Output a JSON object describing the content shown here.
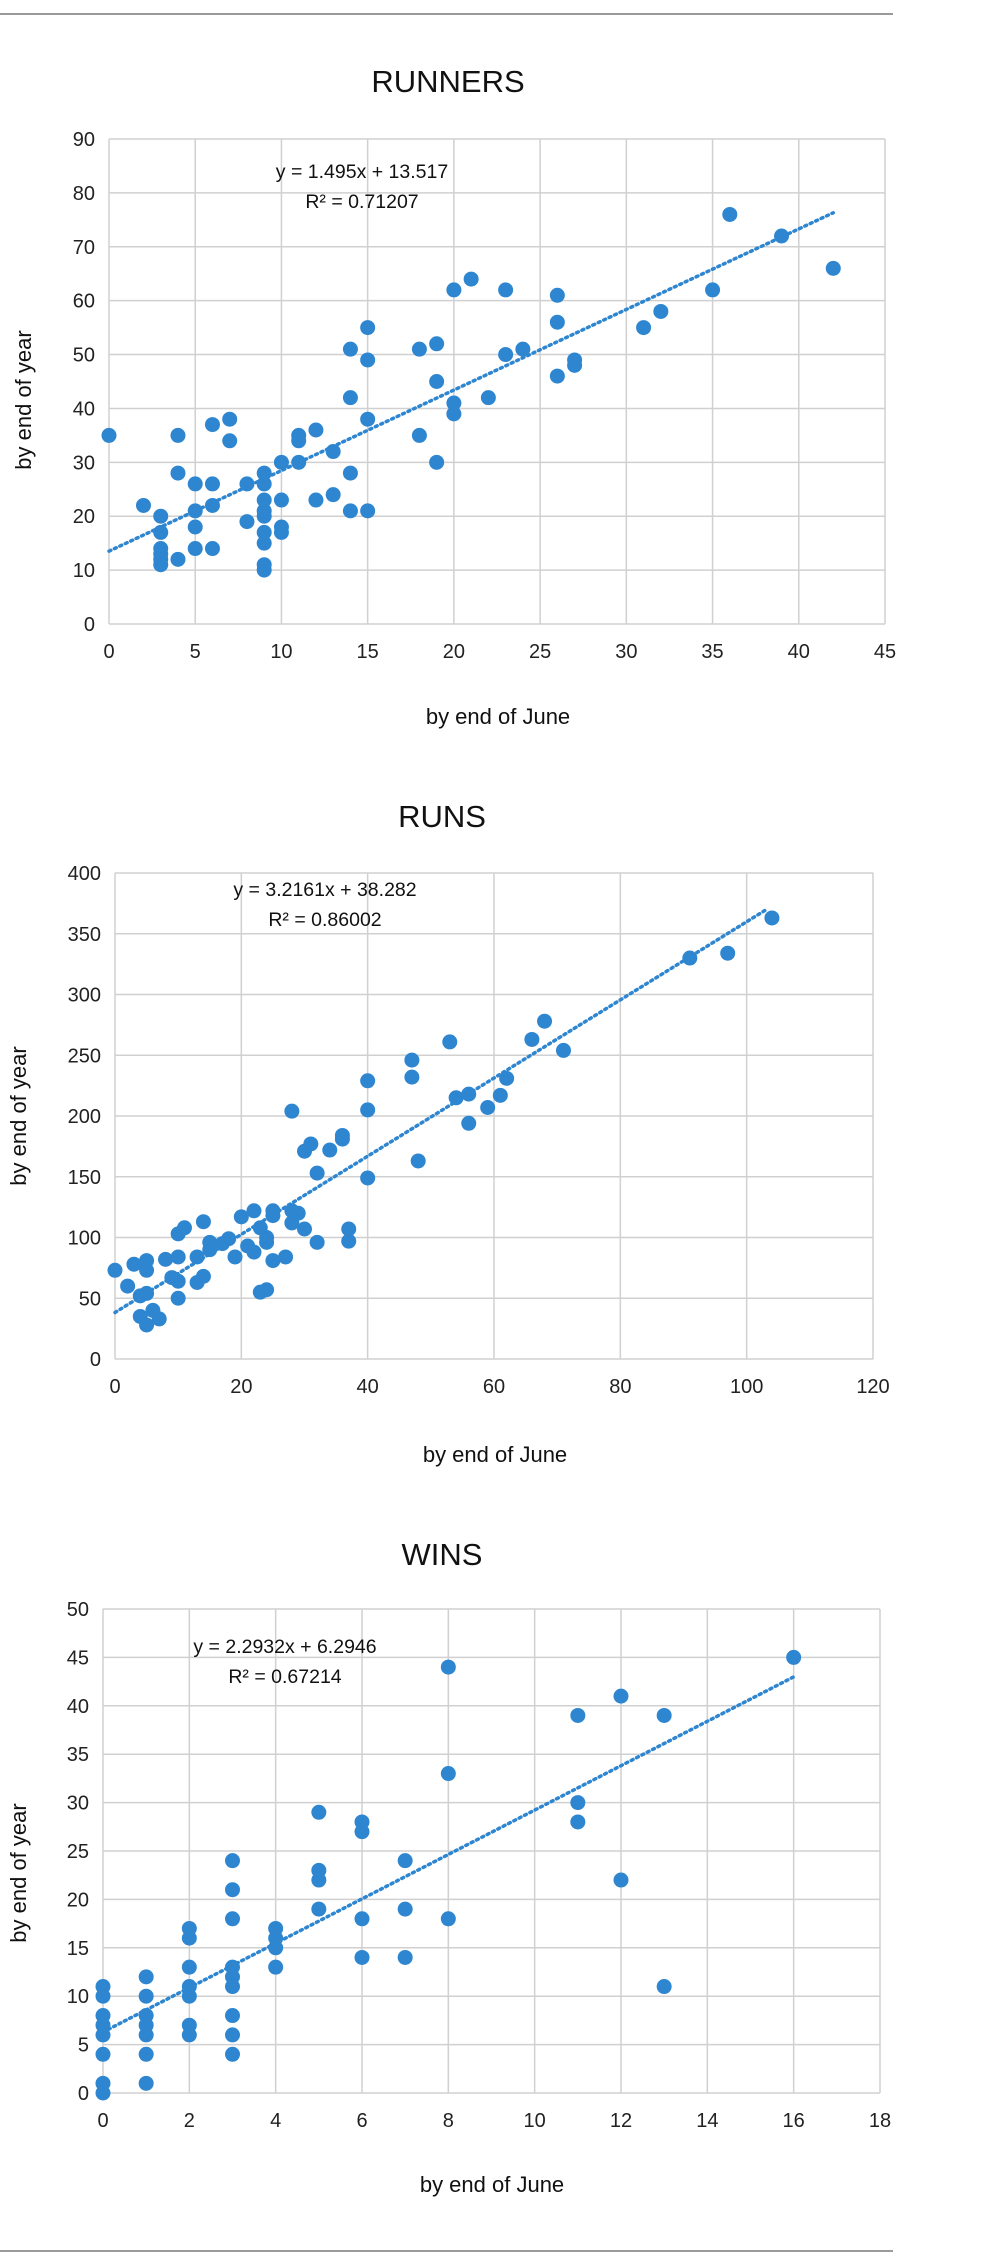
{
  "chart_data": [
    {
      "type": "scatter",
      "title": "RUNNERS",
      "xlabel": "by end of June",
      "ylabel": "by end of year",
      "xlim": [
        0,
        45
      ],
      "ylim": [
        0,
        90
      ],
      "xticks": [
        0,
        5,
        10,
        15,
        20,
        25,
        30,
        35,
        40,
        45
      ],
      "yticks": [
        0,
        10,
        20,
        30,
        40,
        50,
        60,
        70,
        80,
        90
      ],
      "grid": true,
      "trendline": {
        "slope": 1.495,
        "intercept": 13.517,
        "x_range": [
          0,
          42
        ],
        "equation": "y = 1.495x + 13.517",
        "r2": "R² = 0.71207"
      },
      "points": [
        [
          0,
          35
        ],
        [
          2,
          22
        ],
        [
          3,
          11
        ],
        [
          3,
          12
        ],
        [
          3,
          13
        ],
        [
          3,
          14
        ],
        [
          3,
          17
        ],
        [
          3,
          20
        ],
        [
          4,
          12
        ],
        [
          4,
          28
        ],
        [
          4,
          35
        ],
        [
          5,
          14
        ],
        [
          5,
          18
        ],
        [
          5,
          21
        ],
        [
          5,
          26
        ],
        [
          6,
          14
        ],
        [
          6,
          22
        ],
        [
          6,
          26
        ],
        [
          6,
          37
        ],
        [
          7,
          34
        ],
        [
          7,
          38
        ],
        [
          8,
          19
        ],
        [
          8,
          26
        ],
        [
          9,
          10
        ],
        [
          9,
          11
        ],
        [
          9,
          15
        ],
        [
          9,
          17
        ],
        [
          9,
          20
        ],
        [
          9,
          21
        ],
        [
          9,
          23
        ],
        [
          9,
          26
        ],
        [
          9,
          28
        ],
        [
          10,
          17
        ],
        [
          10,
          18
        ],
        [
          10,
          23
        ],
        [
          10,
          30
        ],
        [
          11,
          30
        ],
        [
          11,
          34
        ],
        [
          11,
          35
        ],
        [
          12,
          23
        ],
        [
          12,
          36
        ],
        [
          13,
          24
        ],
        [
          13,
          32
        ],
        [
          14,
          21
        ],
        [
          14,
          28
        ],
        [
          14,
          42
        ],
        [
          14,
          51
        ],
        [
          15,
          21
        ],
        [
          15,
          38
        ],
        [
          15,
          49
        ],
        [
          15,
          55
        ],
        [
          18,
          35
        ],
        [
          18,
          51
        ],
        [
          19,
          30
        ],
        [
          19,
          45
        ],
        [
          19,
          52
        ],
        [
          20,
          39
        ],
        [
          20,
          41
        ],
        [
          20,
          62
        ],
        [
          21,
          64
        ],
        [
          22,
          42
        ],
        [
          23,
          50
        ],
        [
          23,
          62
        ],
        [
          24,
          51
        ],
        [
          26,
          46
        ],
        [
          26,
          56
        ],
        [
          26,
          61
        ],
        [
          27,
          48
        ],
        [
          27,
          49
        ],
        [
          31,
          55
        ],
        [
          32,
          58
        ],
        [
          35,
          62
        ],
        [
          36,
          76
        ],
        [
          39,
          72
        ],
        [
          42,
          66
        ]
      ]
    },
    {
      "type": "scatter",
      "title": "RUNS",
      "xlabel": "by end of June",
      "ylabel": "by end of year",
      "xlim": [
        0,
        120
      ],
      "ylim": [
        0,
        400
      ],
      "xticks": [
        0,
        20,
        40,
        60,
        80,
        100,
        120
      ],
      "yticks": [
        0,
        50,
        100,
        150,
        200,
        250,
        300,
        350,
        400
      ],
      "grid": true,
      "trendline": {
        "slope": 3.2161,
        "intercept": 38.282,
        "x_range": [
          0,
          103
        ],
        "equation": "y = 3.2161x + 38.282",
        "r2": "R² = 0.86002"
      },
      "points": [
        [
          0,
          73
        ],
        [
          2,
          60
        ],
        [
          3,
          78
        ],
        [
          4,
          35
        ],
        [
          4,
          52
        ],
        [
          5,
          28
        ],
        [
          5,
          54
        ],
        [
          5,
          73
        ],
        [
          5,
          81
        ],
        [
          6,
          40
        ],
        [
          7,
          33
        ],
        [
          8,
          82
        ],
        [
          9,
          67
        ],
        [
          10,
          50
        ],
        [
          10,
          64
        ],
        [
          10,
          84
        ],
        [
          10,
          103
        ],
        [
          11,
          108
        ],
        [
          13,
          63
        ],
        [
          13,
          84
        ],
        [
          14,
          68
        ],
        [
          14,
          113
        ],
        [
          15,
          90
        ],
        [
          15,
          96
        ],
        [
          17,
          95
        ],
        [
          18,
          99
        ],
        [
          19,
          84
        ],
        [
          20,
          117
        ],
        [
          21,
          93
        ],
        [
          22,
          88
        ],
        [
          22,
          122
        ],
        [
          23,
          55
        ],
        [
          23,
          108
        ],
        [
          24,
          57
        ],
        [
          24,
          96
        ],
        [
          24,
          100
        ],
        [
          25,
          81
        ],
        [
          25,
          118
        ],
        [
          25,
          122
        ],
        [
          27,
          84
        ],
        [
          28,
          112
        ],
        [
          28,
          122
        ],
        [
          28,
          204
        ],
        [
          29,
          120
        ],
        [
          30,
          107
        ],
        [
          30,
          171
        ],
        [
          31,
          177
        ],
        [
          32,
          96
        ],
        [
          32,
          153
        ],
        [
          34,
          172
        ],
        [
          36,
          181
        ],
        [
          36,
          184
        ],
        [
          37,
          97
        ],
        [
          37,
          107
        ],
        [
          40,
          149
        ],
        [
          40,
          205
        ],
        [
          40,
          229
        ],
        [
          47,
          232
        ],
        [
          47,
          246
        ],
        [
          48,
          163
        ],
        [
          53,
          261
        ],
        [
          54,
          215
        ],
        [
          56,
          194
        ],
        [
          56,
          218
        ],
        [
          59,
          207
        ],
        [
          61,
          217
        ],
        [
          62,
          231
        ],
        [
          66,
          263
        ],
        [
          68,
          278
        ],
        [
          71,
          254
        ],
        [
          91,
          330
        ],
        [
          97,
          334
        ],
        [
          104,
          363
        ]
      ]
    },
    {
      "type": "scatter",
      "title": "WINS",
      "xlabel": "by end of June",
      "ylabel": "by end of year",
      "xlim": [
        0,
        18
      ],
      "ylim": [
        0,
        50
      ],
      "xticks": [
        0,
        2,
        4,
        6,
        8,
        10,
        12,
        14,
        16,
        18
      ],
      "yticks": [
        0,
        5,
        10,
        15,
        20,
        25,
        30,
        35,
        40,
        45,
        50
      ],
      "grid": true,
      "trendline": {
        "slope": 2.2932,
        "intercept": 6.2946,
        "x_range": [
          0,
          16
        ],
        "equation": "y = 2.2932x + 6.2946",
        "r2": "R² = 0.67214"
      },
      "points": [
        [
          0,
          0
        ],
        [
          0,
          1
        ],
        [
          0,
          4
        ],
        [
          0,
          6
        ],
        [
          0,
          7
        ],
        [
          0,
          8
        ],
        [
          0,
          10
        ],
        [
          0,
          11
        ],
        [
          1,
          1
        ],
        [
          1,
          4
        ],
        [
          1,
          6
        ],
        [
          1,
          7
        ],
        [
          1,
          8
        ],
        [
          1,
          10
        ],
        [
          1,
          12
        ],
        [
          2,
          6
        ],
        [
          2,
          7
        ],
        [
          2,
          10
        ],
        [
          2,
          11
        ],
        [
          2,
          13
        ],
        [
          2,
          16
        ],
        [
          2,
          17
        ],
        [
          3,
          4
        ],
        [
          3,
          6
        ],
        [
          3,
          8
        ],
        [
          3,
          11
        ],
        [
          3,
          12
        ],
        [
          3,
          13
        ],
        [
          3,
          18
        ],
        [
          3,
          21
        ],
        [
          3,
          24
        ],
        [
          4,
          13
        ],
        [
          4,
          15
        ],
        [
          4,
          16
        ],
        [
          4,
          17
        ],
        [
          5,
          19
        ],
        [
          5,
          22
        ],
        [
          5,
          23
        ],
        [
          5,
          29
        ],
        [
          6,
          14
        ],
        [
          6,
          18
        ],
        [
          6,
          27
        ],
        [
          6,
          28
        ],
        [
          7,
          14
        ],
        [
          7,
          19
        ],
        [
          7,
          24
        ],
        [
          8,
          18
        ],
        [
          8,
          33
        ],
        [
          8,
          44
        ],
        [
          11,
          28
        ],
        [
          11,
          30
        ],
        [
          11,
          39
        ],
        [
          12,
          22
        ],
        [
          12,
          41
        ],
        [
          13,
          11
        ],
        [
          13,
          39
        ],
        [
          16,
          45
        ]
      ]
    }
  ],
  "colors": {
    "marker": "#2f86d0",
    "trendline": "#2f86d0",
    "grid": "#d0d0d0",
    "rule": "#9a9a9a"
  }
}
